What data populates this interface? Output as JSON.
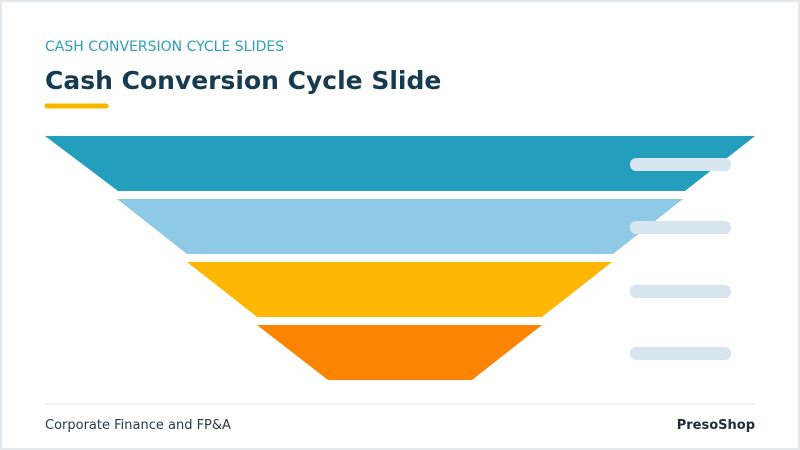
{
  "header": {
    "eyebrow": "CASH CONVERSION CYCLE SLIDES",
    "title": "Cash Conversion Cycle Slide"
  },
  "footer": {
    "left": "Corporate Finance and FP&A",
    "right": "PresoShop"
  }
}
